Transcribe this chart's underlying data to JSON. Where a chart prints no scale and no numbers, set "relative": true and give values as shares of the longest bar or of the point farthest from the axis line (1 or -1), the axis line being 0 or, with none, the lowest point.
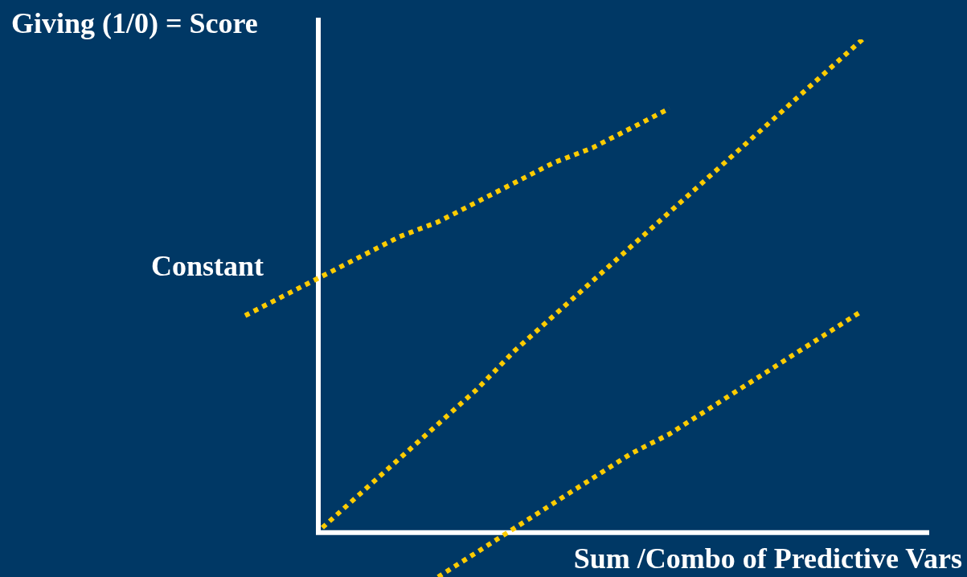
{
  "chart_data": {
    "type": "line",
    "relative": true,
    "xlabel": "Sum /Combo of Predictive Vars",
    "ylabel": "Giving (1/0) = Score",
    "line_style": "dotted",
    "marker": "none",
    "grid": false,
    "legend": false,
    "categories": [
      null,
      null,
      null,
      null,
      null,
      null,
      null,
      null,
      null,
      null,
      null,
      null,
      null,
      null,
      null,
      null,
      null
    ],
    "series": [
      {
        "color": "#ffcc00",
        "values": [
          0.44,
          0.48,
          0.52,
          0.56,
          0.6,
          0.63,
          0.67,
          0.71,
          0.75,
          0.78,
          0.82,
          0.86,
          null,
          null,
          null,
          null,
          null
        ]
      },
      {
        "color": "#ffcc00",
        "values": [
          null,
          null,
          0.01,
          0.08,
          0.15,
          0.22,
          0.29,
          0.37,
          0.44,
          0.51,
          0.58,
          0.65,
          0.72,
          0.79,
          0.86,
          0.93,
          1
        ]
      },
      {
        "color": "#ffcc00",
        "values": [
          null,
          null,
          null,
          null,
          null,
          -0.09,
          -0.04,
          0.01,
          0.06,
          0.11,
          0.16,
          0.2,
          0.25,
          0.3,
          0.35,
          0.4,
          0.45
        ]
      }
    ],
    "annotations": [
      "Constant"
    ]
  }
}
